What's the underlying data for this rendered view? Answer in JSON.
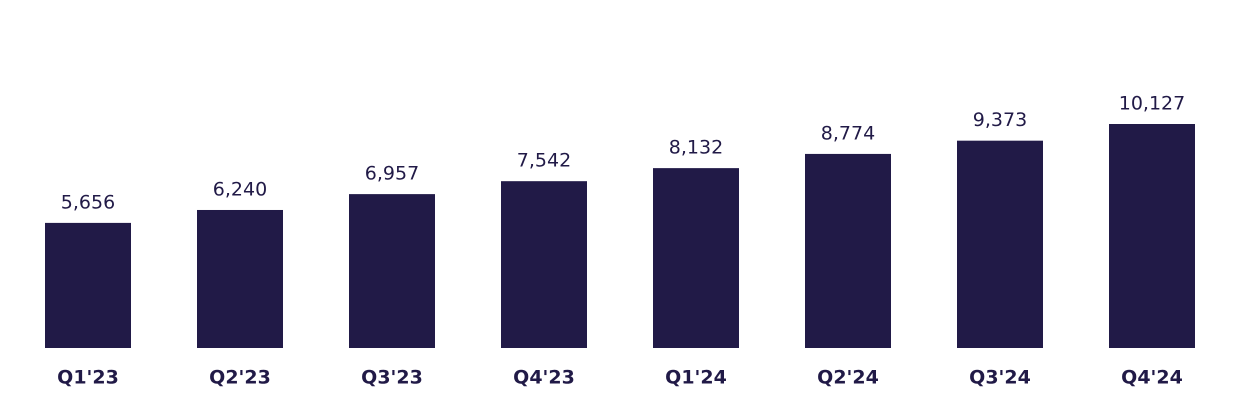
{
  "chart_data": {
    "type": "bar",
    "categories": [
      "Q1'23",
      "Q2'23",
      "Q3'23",
      "Q4'23",
      "Q1'24",
      "Q2'24",
      "Q3'24",
      "Q4'24"
    ],
    "values": [
      5656,
      6240,
      6957,
      7542,
      8132,
      8774,
      9373,
      10127
    ],
    "value_labels": [
      "5,656",
      "6,240",
      "6,957",
      "7,542",
      "8,132",
      "8,774",
      "9,373",
      "10,127"
    ],
    "color": "#211a47"
  }
}
